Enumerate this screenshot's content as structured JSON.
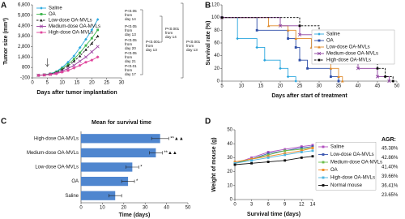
{
  "chart_data": [
    {
      "type": "line",
      "label": "A",
      "y_label": "Tumor size (mm³)",
      "x_label": "Days after tumor implantation",
      "x": [
        2,
        4,
        6,
        8,
        10,
        12,
        14,
        16,
        18,
        20,
        22
      ],
      "xlim": [
        0,
        30
      ],
      "xticks": [
        0,
        5,
        10,
        15,
        20,
        25,
        30
      ],
      "ylim": [
        -200,
        6800
      ],
      "yticks": [
        -200,
        800,
        {
          "value": 1800,
          "label": "1,800"
        },
        {
          "value": 2800,
          "label": "2,800"
        },
        {
          "value": 3800,
          "label": "3,800"
        },
        {
          "value": 4800,
          "label": "4,800"
        },
        {
          "value": 5800,
          "label": "5,800"
        },
        {
          "value": 6800,
          "label": "6,800"
        }
      ],
      "legend": "upper left",
      "series": [
        {
          "name": "Saline",
          "color": "#29a9e0",
          "marker": "diamond",
          "values": [
            50,
            100,
            200,
            400,
            800,
            1300,
            1900,
            2700,
            3500,
            4400,
            5400
          ]
        },
        {
          "name": "OA",
          "color": "#3cb44b",
          "marker": "square",
          "values": [
            50,
            100,
            180,
            350,
            700,
            1100,
            1600,
            2200,
            2900,
            3600,
            4400
          ]
        },
        {
          "name": "Low-dose OA-MVLs",
          "color": "#222222",
          "marker": "triangle",
          "dashed": true,
          "values": [
            50,
            90,
            160,
            300,
            600,
            950,
            1400,
            1900,
            2500,
            3100,
            3800
          ]
        },
        {
          "name": "Medium-dose OA-MVLs",
          "color": "#9b3fa0",
          "marker": "x",
          "values": [
            50,
            80,
            140,
            250,
            450,
            700,
            1000,
            1400,
            1800,
            2300,
            2800
          ]
        },
        {
          "name": "High-dose OA-MVLs",
          "color": "#e0409a",
          "marker": "star",
          "values": [
            40,
            70,
            120,
            200,
            350,
            500,
            750,
            1000,
            1300,
            1500,
            1800
          ]
        }
      ],
      "annotations": [
        {
          "lines": [
            "P<0.05",
            "from",
            "day 14"
          ]
        },
        {
          "lines": [
            "P<0.05",
            "from",
            "day 13"
          ]
        },
        {
          "lines": [
            "P<0.05",
            "from",
            "day 20"
          ]
        },
        {
          "lines": [
            "P<0.05",
            "from",
            "day 21"
          ]
        },
        {
          "lines": [
            "P<0.01",
            "from",
            "day 17"
          ]
        },
        {
          "lines": [
            "P<0.001",
            "from",
            "day 13"
          ]
        },
        {
          "lines": [
            "P<0.001",
            "from",
            "day 14"
          ]
        },
        {
          "lines": [
            "P<0.001",
            "from",
            "day 13"
          ]
        }
      ]
    },
    {
      "type": "step",
      "label": "B",
      "y_label": "Survival rate (%)",
      "x_label": "Days after start of treatment",
      "xlim": [
        5,
        50
      ],
      "xticks": [
        5,
        10,
        15,
        20,
        25,
        30,
        35,
        40,
        45,
        50
      ],
      "ylim": [
        0,
        120
      ],
      "yticks": [
        0,
        20,
        40,
        60,
        80,
        100,
        120
      ],
      "legend": "right",
      "series": [
        {
          "name": "Saline",
          "color": "#2aa6de",
          "marker": "diamond",
          "x": [
            5,
            9,
            14,
            16,
            20,
            22,
            24
          ],
          "values": [
            100,
            67,
            53,
            33,
            20,
            7,
            0
          ]
        },
        {
          "name": "OA",
          "color": "#2f4fa8",
          "marker": "square",
          "x": [
            5,
            14,
            22,
            24,
            25,
            27,
            33,
            35
          ],
          "values": [
            100,
            80,
            67,
            53,
            33,
            20,
            7,
            0
          ]
        },
        {
          "name": "Low-dose OA-MVLs",
          "color": "#e08a2a",
          "marker": "triangle",
          "x": [
            5,
            17,
            22,
            24,
            28,
            30,
            33,
            35,
            36
          ],
          "values": [
            100,
            87,
            80,
            67,
            53,
            33,
            20,
            7,
            0
          ]
        },
        {
          "name": "Medium-dose OA-MVLs",
          "color": "#8a3c9c",
          "marker": "x",
          "x": [
            5,
            20,
            25,
            30,
            33,
            35,
            40,
            45,
            48
          ],
          "values": [
            100,
            87,
            73,
            60,
            47,
            33,
            20,
            7,
            0
          ]
        },
        {
          "name": "High-dose OA-MVLs",
          "color": "#000000",
          "marker": "star",
          "dashed": true,
          "x": [
            5,
            25,
            30,
            35,
            38,
            40,
            45,
            47,
            49
          ],
          "values": [
            100,
            87,
            73,
            60,
            47,
            33,
            20,
            7,
            0
          ]
        }
      ]
    },
    {
      "type": "hbar",
      "label": "C",
      "title": "Mean for survival time",
      "x_label": "Time (days)",
      "categories": [
        "High-dose OA-MVLs",
        "Medium-dose OA-MVLs",
        "Low-dose OA-MVLs",
        "OA",
        "Saline"
      ],
      "values": [
        37,
        35,
        24,
        22,
        16
      ],
      "errors": [
        4,
        3,
        3,
        3,
        3
      ],
      "significance": [
        "**▲▲",
        "**▲▲",
        "*",
        "*",
        null
      ],
      "color": "#4f86cf",
      "xlim": [
        0,
        50
      ],
      "xticks": [
        0,
        10,
        20,
        30,
        40,
        50
      ]
    },
    {
      "type": "line",
      "label": "D",
      "y_label": "Weight of mouse (g)",
      "x_label": "Survival time (days)",
      "x": [
        0,
        3,
        6,
        9,
        12,
        14
      ],
      "xlim": [
        0,
        14
      ],
      "xticks": [
        0,
        3,
        6,
        9,
        12,
        14
      ],
      "ylim": [
        0,
        50
      ],
      "yticks": [
        0,
        10,
        20,
        30,
        40,
        50
      ],
      "legend": "right",
      "series": [
        {
          "name": "Saline",
          "color": "#b04fbf",
          "marker": "square",
          "values": [
            26,
            30,
            34,
            36,
            38,
            39
          ]
        },
        {
          "name": "Low-dose OA-MVLs",
          "color": "#3b56b0",
          "marker": "square",
          "values": [
            26,
            29,
            33,
            35,
            37,
            38
          ]
        },
        {
          "name": "Medium-dose OA-MVLs",
          "color": "#6cbf4a",
          "marker": "square",
          "values": [
            26,
            29,
            32,
            35,
            36,
            37
          ]
        },
        {
          "name": "OA",
          "color": "#f08a24",
          "marker": "square",
          "values": [
            27,
            29,
            31,
            33,
            35,
            37
          ]
        },
        {
          "name": "High-dose OA-MVLs",
          "color": "#4fb5e0",
          "marker": "square",
          "values": [
            26,
            28,
            30,
            32,
            34,
            35
          ]
        },
        {
          "name": "Normal mouse",
          "color": "#111111",
          "marker": "square",
          "values": [
            25,
            26,
            27,
            28,
            30,
            31
          ]
        }
      ],
      "agr_title": "AGR:",
      "agr_labels": [
        "45.38%",
        "42.86%",
        "41.40%",
        "39.66%",
        "36.41%",
        "23.65%"
      ]
    }
  ]
}
